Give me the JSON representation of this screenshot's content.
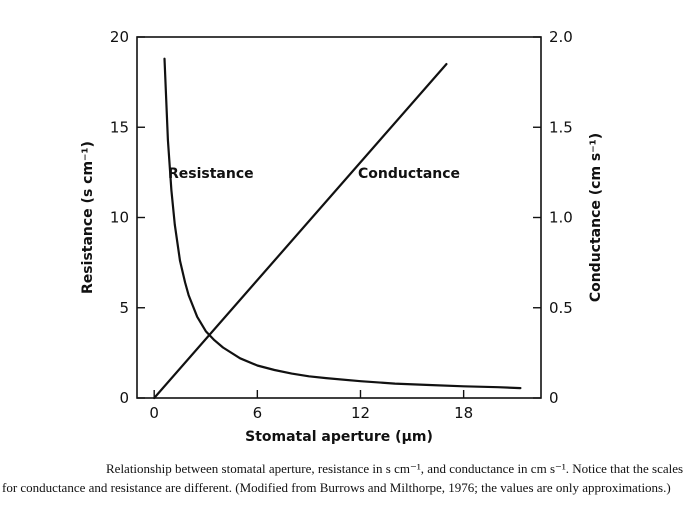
{
  "chart_data": {
    "type": "line",
    "title": "",
    "xlabel": "Stomatal aperture (μm)",
    "ylabel_left": "Resistance (s cm⁻¹)",
    "ylabel_right": "Conductance (cm s⁻¹)",
    "xlim": [
      -1,
      22.5
    ],
    "ylim_left": [
      0,
      20
    ],
    "ylim_right": [
      0,
      2.0
    ],
    "x_ticks": [
      "0",
      "6",
      "12",
      "18"
    ],
    "y_ticks_left": [
      "0",
      "5",
      "10",
      "15",
      "20"
    ],
    "y_ticks_right": [
      "0",
      "0.5",
      "1.0",
      "1.5",
      "2.0"
    ],
    "grid": false,
    "legend": "none",
    "series": [
      {
        "name": "Resistance",
        "axis": "left",
        "color": "#111111",
        "x": [
          0.6,
          0.8,
          1.0,
          1.2,
          1.5,
          1.8,
          2.0,
          2.5,
          3.0,
          3.5,
          4.0,
          5.0,
          6.0,
          7.0,
          8.0,
          9.0,
          10.0,
          12.0,
          14.0,
          16.0,
          18.0,
          20.0,
          21.3
        ],
        "y": [
          18.8,
          14.3,
          11.5,
          9.6,
          7.6,
          6.4,
          5.7,
          4.5,
          3.7,
          3.2,
          2.8,
          2.2,
          1.8,
          1.55,
          1.35,
          1.2,
          1.1,
          0.93,
          0.8,
          0.72,
          0.65,
          0.6,
          0.55
        ]
      },
      {
        "name": "Conductance",
        "axis": "right",
        "color": "#111111",
        "x": [
          0,
          17
        ],
        "y": [
          0,
          1.85
        ]
      }
    ],
    "annotations": [
      {
        "text": "Resistance",
        "series": "Resistance"
      },
      {
        "text": "Conductance",
        "series": "Conductance"
      }
    ]
  },
  "caption": "Relationship between stomatal aperture, resistance in s cm⁻¹, and conductance in cm s⁻¹. Notice that the scales for conductance and resistance are different. (Modified from Burrows and Milthorpe, 1976; the values are only approximations.)"
}
